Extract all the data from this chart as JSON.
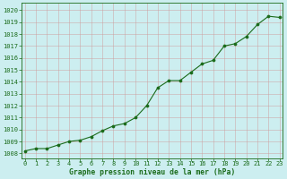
{
  "x": [
    0,
    1,
    2,
    3,
    4,
    5,
    6,
    7,
    8,
    9,
    10,
    11,
    12,
    13,
    14,
    15,
    16,
    17,
    18,
    19,
    20,
    21,
    22,
    23
  ],
  "y": [
    1008.2,
    1008.4,
    1008.4,
    1008.7,
    1009.0,
    1009.1,
    1009.4,
    1009.9,
    1010.3,
    1010.5,
    1011.0,
    1012.0,
    1013.5,
    1014.1,
    1014.1,
    1014.8,
    1015.5,
    1015.8,
    1017.0,
    1017.2,
    1017.8,
    1018.8,
    1019.5,
    1019.4
  ],
  "line_color": "#1a6b1a",
  "marker_color": "#1a6b1a",
  "bg_color": "#cceef0",
  "grid_color": "#88cc88",
  "title": "Graphe pression niveau de la mer (hPa)",
  "ylabel_start": 1008,
  "ylabel_end": 1020,
  "ylabel_step": 1,
  "xlim": [
    -0.3,
    23.3
  ],
  "ylim": [
    1007.6,
    1020.6
  ]
}
